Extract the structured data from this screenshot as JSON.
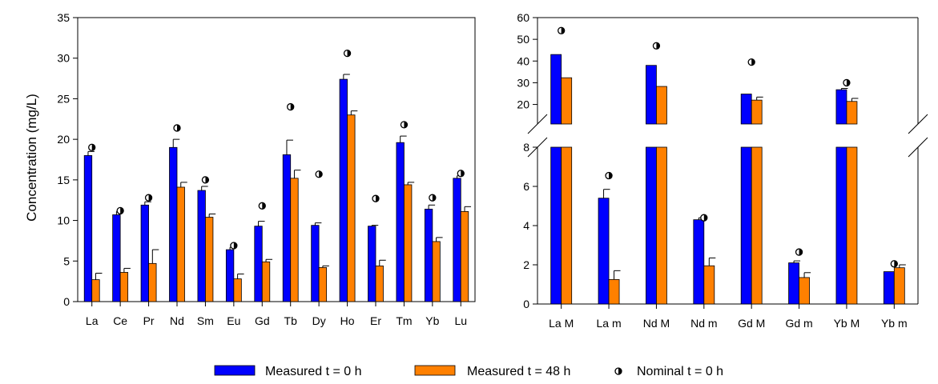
{
  "colors": {
    "measured_0h": "#0000ff",
    "measured_48h": "#ff8000",
    "nominal": "#000000",
    "nominal_fill": "#ffffff",
    "axis": "#000000"
  },
  "legend": {
    "position": "bottom-center",
    "items": [
      {
        "label": "Measured t = 0 h",
        "kind": "bar",
        "color_key": "measured_0h"
      },
      {
        "label": "Measured t = 48 h",
        "kind": "bar",
        "color_key": "measured_48h"
      },
      {
        "label": "Nominal t = 0 h",
        "kind": "marker",
        "color_key": "nominal"
      }
    ]
  },
  "chart_data": [
    {
      "type": "bar",
      "ylabel": "Concentration (mg/L)",
      "ylim": [
        0,
        35
      ],
      "yticks": [
        0,
        5,
        10,
        15,
        20,
        25,
        30,
        35
      ],
      "grid": false,
      "categories": [
        "La",
        "Ce",
        "Pr",
        "Nd",
        "Sm",
        "Eu",
        "Gd",
        "Tb",
        "Dy",
        "Ho",
        "Er",
        "Tm",
        "Yb",
        "Lu"
      ],
      "series": [
        {
          "name": "Measured t = 0 h",
          "color_key": "measured_0h",
          "values": [
            18.0,
            10.7,
            11.9,
            19.0,
            13.7,
            6.4,
            9.3,
            18.1,
            9.4,
            27.4,
            9.3,
            19.6,
            11.4,
            15.2
          ],
          "errors": [
            0.5,
            0.4,
            0.4,
            1.0,
            0.5,
            0.3,
            0.6,
            1.8,
            0.3,
            0.6,
            0.1,
            0.8,
            0.5,
            0.3
          ]
        },
        {
          "name": "Measured t = 48 h",
          "color_key": "measured_48h",
          "values": [
            2.7,
            3.6,
            4.7,
            14.1,
            10.4,
            2.8,
            4.9,
            15.2,
            4.2,
            23.0,
            4.4,
            14.4,
            7.4,
            11.1
          ],
          "errors": [
            0.8,
            0.5,
            1.7,
            0.6,
            0.4,
            0.6,
            0.3,
            1.0,
            0.2,
            0.5,
            0.7,
            0.3,
            0.5,
            0.6
          ]
        },
        {
          "name": "Nominal t = 0 h",
          "kind": "marker",
          "values": [
            19.0,
            11.2,
            12.8,
            21.4,
            15.0,
            6.9,
            11.8,
            24.0,
            15.7,
            30.6,
            12.7,
            21.8,
            12.8,
            15.8
          ]
        }
      ]
    },
    {
      "type": "bar",
      "broken_axis": true,
      "upper_ylim": [
        11,
        60
      ],
      "upper_yticks": [
        20,
        30,
        40,
        50,
        60
      ],
      "lower_ylim": [
        0,
        8
      ],
      "lower_yticks": [
        0,
        2,
        4,
        6,
        8
      ],
      "grid": false,
      "categories": [
        "La M",
        "La m",
        "Nd M",
        "Nd m",
        "Gd M",
        "Gd m",
        "Yb M",
        "Yb m"
      ],
      "series": [
        {
          "name": "Measured t = 0 h",
          "color_key": "measured_0h",
          "values": [
            43.0,
            5.4,
            38.0,
            4.3,
            24.8,
            2.1,
            26.8,
            1.65
          ],
          "errors": [
            0,
            0.45,
            0,
            0.1,
            0,
            0.1,
            0.6,
            0
          ]
        },
        {
          "name": "Measured t = 48 h",
          "color_key": "measured_48h",
          "values": [
            32.3,
            1.25,
            28.3,
            1.95,
            22.0,
            1.35,
            21.4,
            1.85
          ],
          "errors": [
            0,
            0.45,
            0,
            0.4,
            1.4,
            0.25,
            1.4,
            0.15
          ]
        },
        {
          "name": "Nominal t = 0 h",
          "kind": "marker",
          "values": [
            54.0,
            6.55,
            47.0,
            4.4,
            39.5,
            2.65,
            30.0,
            2.05
          ]
        }
      ]
    }
  ]
}
